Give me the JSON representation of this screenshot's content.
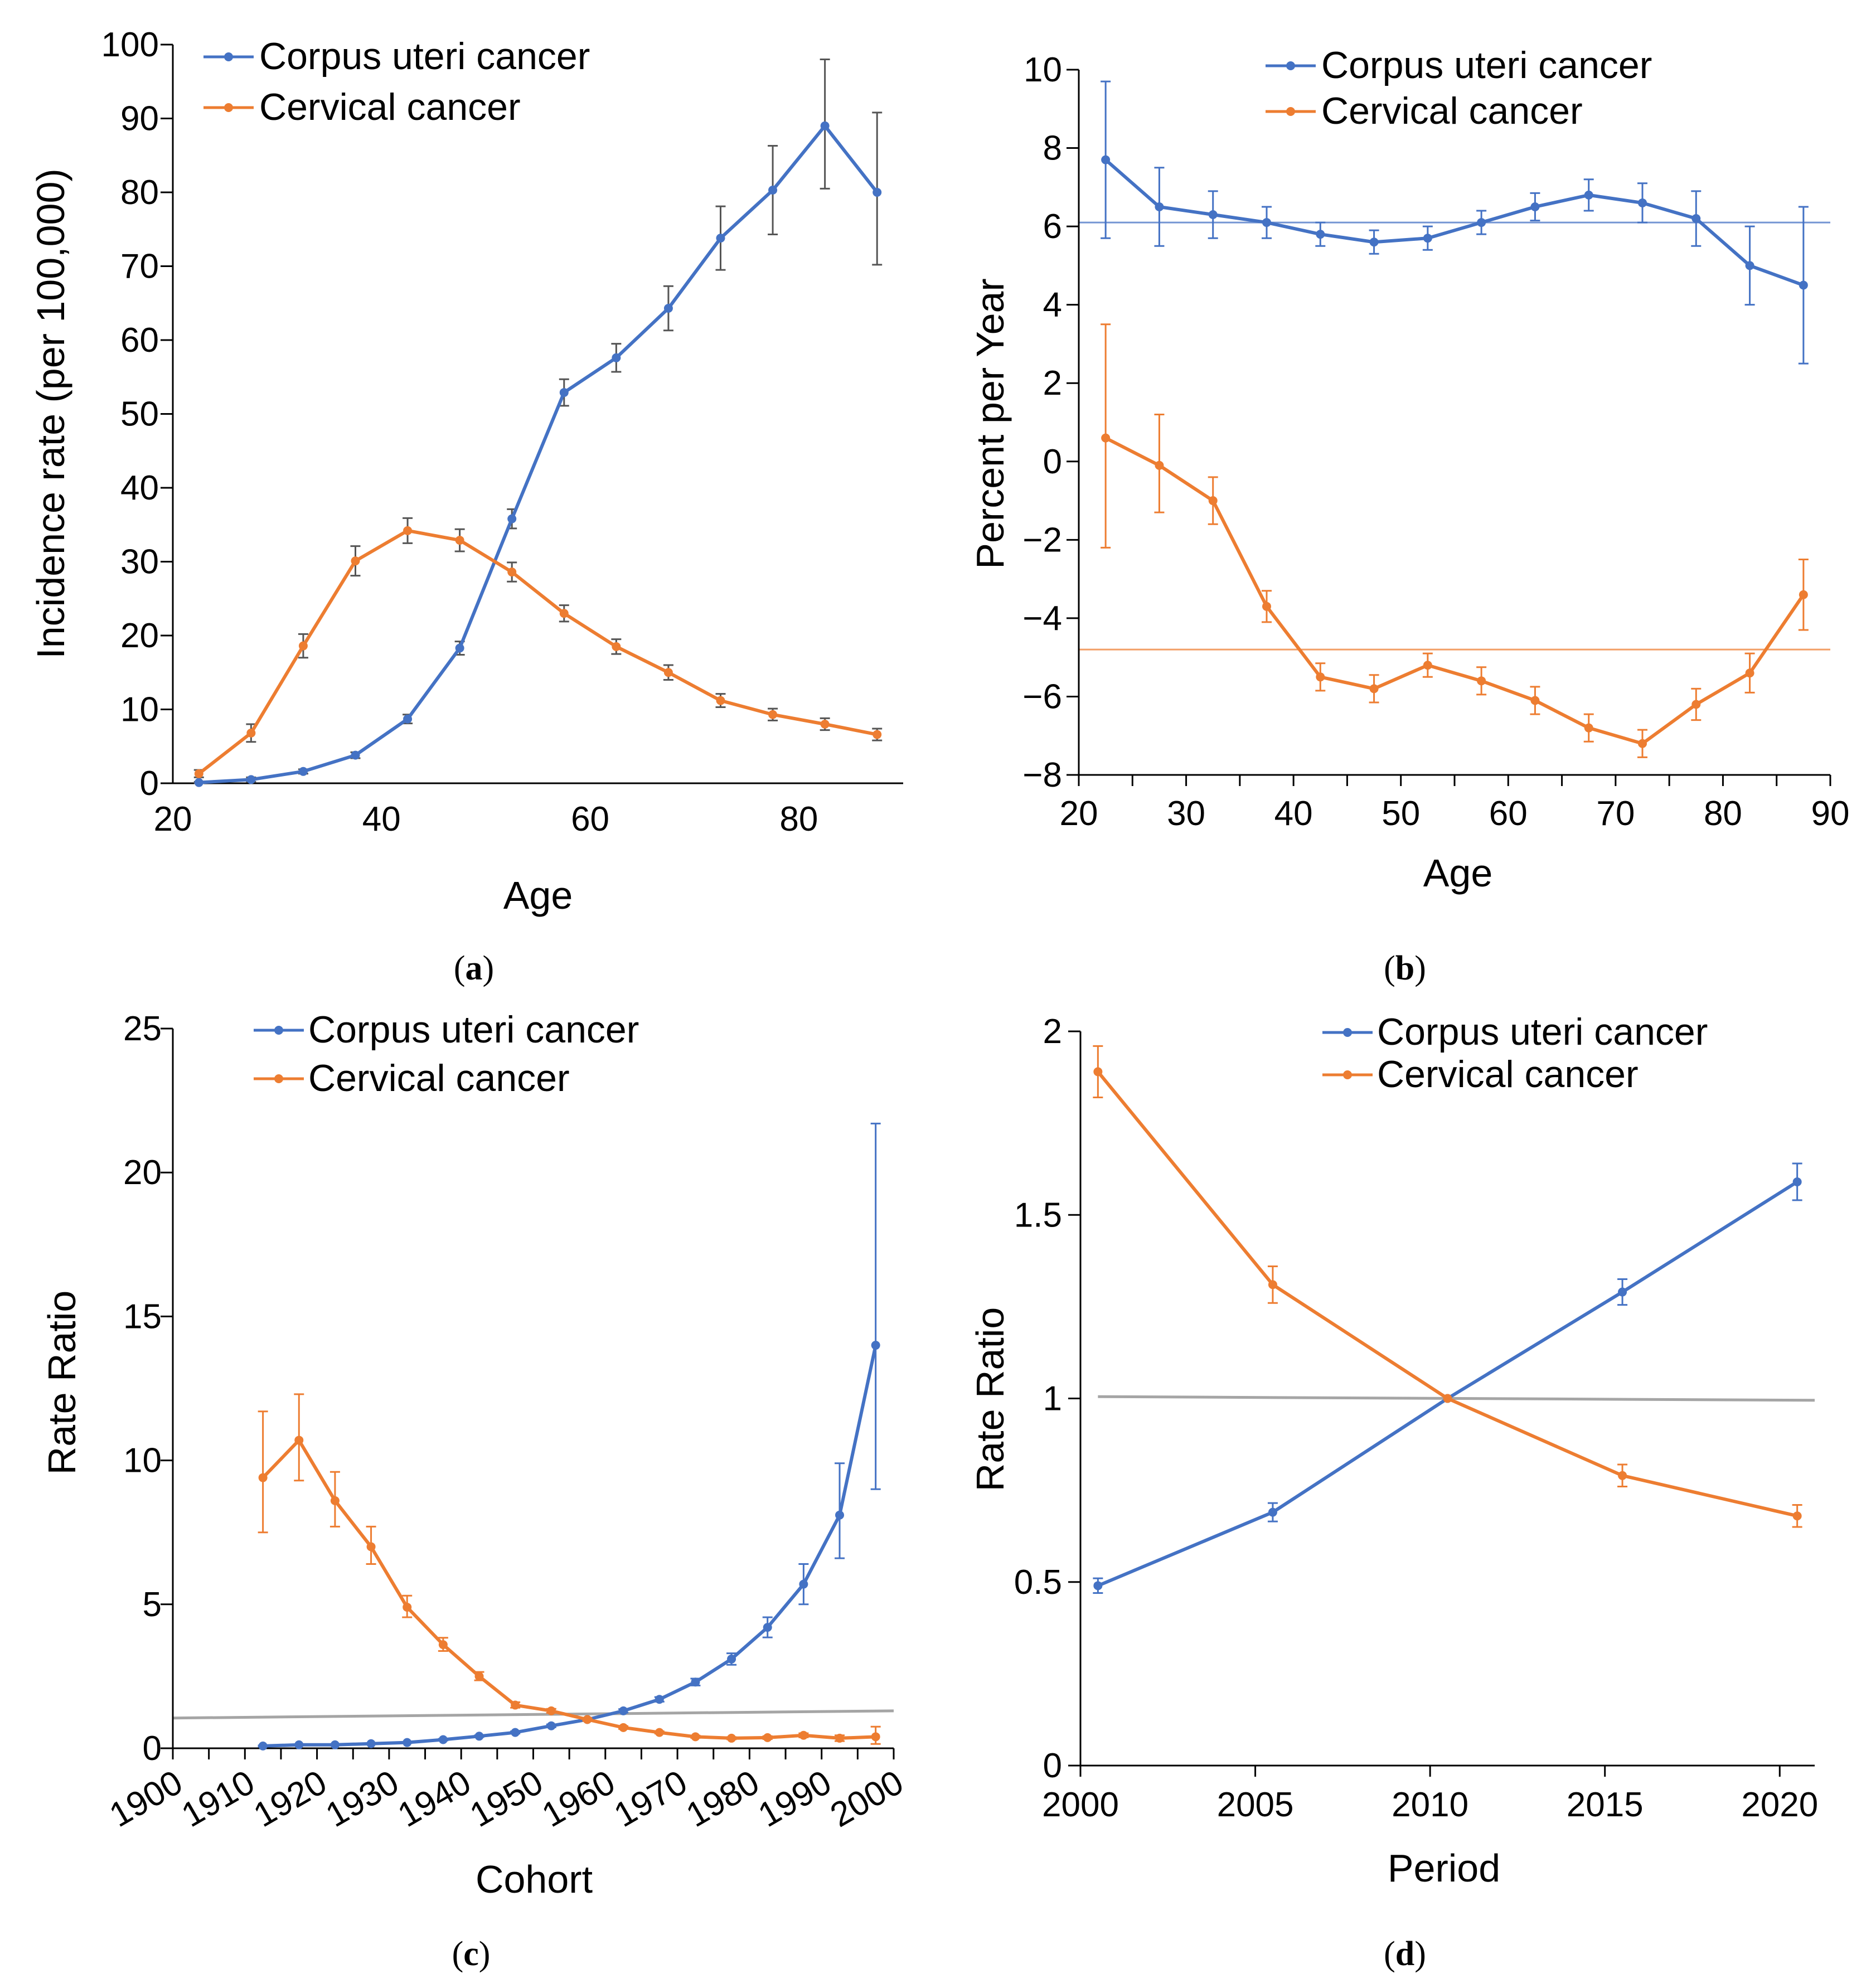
{
  "colors": {
    "corpus": "#4472C4",
    "cervical": "#ED7D31",
    "reference": "#A5A5A5",
    "errorbar_a": "#555555"
  },
  "chart_data": [
    {
      "type": "line",
      "panel_label": "a",
      "xlabel": "Age",
      "ylabel": "Incidence rate (per 100,000)",
      "xlim": [
        20,
        90
      ],
      "ylim": [
        0,
        100
      ],
      "xticks": [
        "20",
        "40",
        "60",
        "80"
      ],
      "yticks": [
        "0",
        "10",
        "20",
        "30",
        "40",
        "50",
        "60",
        "70",
        "80",
        "90",
        "100"
      ],
      "legend": "top-left",
      "error_bar_color": "#555555",
      "x": [
        22.5,
        27.5,
        32.5,
        37.5,
        42.5,
        47.5,
        52.5,
        57.5,
        62.5,
        67.5,
        72.5,
        77.5,
        82.5,
        87.5
      ],
      "series": [
        {
          "name": "Corpus uteri cancer",
          "color": "#4472C4",
          "values": [
            0.1,
            0.5,
            1.6,
            3.8,
            8.7,
            18.3,
            35.8,
            52.9,
            57.6,
            64.3,
            73.8,
            80.3,
            89.0,
            80.0
          ],
          "err_low": [
            0.1,
            0.3,
            0.3,
            0.4,
            0.6,
            0.9,
            1.3,
            1.8,
            1.9,
            3.0,
            4.3,
            6.0,
            8.5,
            9.8
          ],
          "err_high": [
            0.1,
            0.3,
            0.3,
            0.4,
            0.6,
            0.9,
            1.3,
            1.8,
            1.9,
            3.0,
            4.3,
            6.0,
            9.0,
            10.8
          ]
        },
        {
          "name": "Cervical cancer",
          "color": "#ED7D31",
          "values": [
            1.3,
            6.8,
            18.6,
            30.1,
            34.2,
            32.9,
            28.6,
            23.0,
            18.5,
            15.0,
            11.2,
            9.3,
            8.0,
            6.6
          ],
          "err_low": [
            0.5,
            1.2,
            1.6,
            2.0,
            1.7,
            1.5,
            1.3,
            1.1,
            1.0,
            1.0,
            0.9,
            0.8,
            0.8,
            0.8
          ],
          "err_high": [
            0.5,
            1.2,
            1.6,
            2.0,
            1.7,
            1.5,
            1.3,
            1.1,
            1.0,
            1.0,
            0.9,
            0.8,
            0.8,
            0.8
          ]
        }
      ]
    },
    {
      "type": "line",
      "panel_label": "b",
      "xlabel": "Age",
      "ylabel": "Percent per Year",
      "xlim": [
        20,
        90
      ],
      "ylim": [
        -8,
        10
      ],
      "xticks": [
        "20",
        "30",
        "40",
        "50",
        "60",
        "70",
        "80",
        "90"
      ],
      "yticks": [
        "−8",
        "−6",
        "−4",
        "−2",
        "0",
        "2",
        "4",
        "6",
        "8",
        "10"
      ],
      "legend": "top-center",
      "x": [
        22.5,
        27.5,
        32.5,
        37.5,
        42.5,
        47.5,
        52.5,
        57.5,
        62.5,
        67.5,
        72.5,
        77.5,
        82.5,
        87.5
      ],
      "reference_lines": [
        {
          "value": 6.1,
          "color": "#4472C4"
        },
        {
          "value": -4.8,
          "color": "#ED7D31"
        }
      ],
      "series": [
        {
          "name": "Corpus uteri cancer",
          "color": "#4472C4",
          "values": [
            7.7,
            6.5,
            6.3,
            6.1,
            5.8,
            5.6,
            5.7,
            6.1,
            6.5,
            6.8,
            6.6,
            6.2,
            5.0,
            4.5
          ],
          "err_low": [
            2.0,
            1.0,
            0.6,
            0.4,
            0.3,
            0.3,
            0.3,
            0.3,
            0.35,
            0.4,
            0.5,
            0.7,
            1.0,
            2.0
          ],
          "err_high": [
            2.0,
            1.0,
            0.6,
            0.4,
            0.3,
            0.3,
            0.3,
            0.3,
            0.35,
            0.4,
            0.5,
            0.7,
            1.0,
            2.0
          ]
        },
        {
          "name": "Cervical cancer",
          "color": "#ED7D31",
          "values": [
            0.6,
            -0.1,
            -1.0,
            -3.7,
            -5.5,
            -5.8,
            -5.2,
            -5.6,
            -6.1,
            -6.8,
            -7.2,
            -6.2,
            -5.4,
            -3.4
          ],
          "err_low": [
            2.8,
            1.2,
            0.6,
            0.4,
            0.35,
            0.35,
            0.3,
            0.35,
            0.35,
            0.35,
            0.35,
            0.4,
            0.5,
            0.9
          ],
          "err_high": [
            2.9,
            1.3,
            0.6,
            0.4,
            0.35,
            0.35,
            0.3,
            0.35,
            0.35,
            0.35,
            0.35,
            0.4,
            0.5,
            0.9
          ]
        }
      ]
    },
    {
      "type": "line",
      "panel_label": "c",
      "xlabel": "Cohort",
      "ylabel": "Rate Ratio",
      "xlim": [
        1900,
        2000
      ],
      "ylim": [
        0,
        25
      ],
      "xticks": [
        "1900",
        "1910",
        "1920",
        "1930",
        "1940",
        "1950",
        "1960",
        "1970",
        "1980",
        "1990",
        "2000"
      ],
      "yticks": [
        "0",
        "5",
        "10",
        "15",
        "20",
        "25"
      ],
      "legend": "top-center",
      "x": [
        1912.5,
        1917.5,
        1922.5,
        1927.5,
        1932.5,
        1937.5,
        1942.5,
        1947.5,
        1952.5,
        1957.5,
        1962.5,
        1967.5,
        1972.5,
        1977.5,
        1982.5,
        1987.5,
        1992.5,
        1997.5
      ],
      "reference_line": {
        "color": "#A5A5A5",
        "from": [
          1900,
          1.05
        ],
        "to": [
          2000,
          1.3
        ]
      },
      "series": [
        {
          "name": "Corpus uteri cancer",
          "color": "#4472C4",
          "values": [
            0.08,
            0.12,
            0.12,
            0.16,
            0.2,
            0.3,
            0.42,
            0.55,
            0.78,
            1.0,
            1.3,
            1.7,
            2.3,
            3.1,
            4.2,
            5.7,
            8.1,
            14.0
          ],
          "err_low": [
            0.02,
            0.02,
            0.02,
            0.02,
            0.02,
            0.03,
            0.03,
            0.04,
            0.05,
            0.05,
            0.06,
            0.08,
            0.12,
            0.2,
            0.35,
            0.7,
            1.5,
            5.0
          ],
          "err_high": [
            0.02,
            0.02,
            0.02,
            0.02,
            0.02,
            0.03,
            0.03,
            0.04,
            0.05,
            0.05,
            0.06,
            0.08,
            0.12,
            0.2,
            0.35,
            0.7,
            1.8,
            7.7
          ]
        },
        {
          "name": "Cervical cancer",
          "color": "#ED7D31",
          "values": [
            9.4,
            10.7,
            8.6,
            7.0,
            4.9,
            3.6,
            2.5,
            1.5,
            1.3,
            1.0,
            0.72,
            0.55,
            0.4,
            0.35,
            0.37,
            0.45,
            0.35,
            0.4
          ],
          "err_low": [
            1.9,
            1.4,
            0.9,
            0.6,
            0.35,
            0.22,
            0.14,
            0.09,
            0.07,
            0.05,
            0.05,
            0.04,
            0.04,
            0.04,
            0.05,
            0.07,
            0.1,
            0.25
          ],
          "err_high": [
            2.3,
            1.6,
            1.0,
            0.7,
            0.4,
            0.24,
            0.15,
            0.1,
            0.07,
            0.05,
            0.05,
            0.04,
            0.04,
            0.04,
            0.05,
            0.07,
            0.1,
            0.35
          ]
        }
      ]
    },
    {
      "type": "line",
      "panel_label": "d",
      "xlabel": "Period",
      "ylabel": "Rate Ratio",
      "xlim": [
        2000,
        2021
      ],
      "ylim": [
        0,
        2
      ],
      "xticks": [
        "2000",
        "2005",
        "2010",
        "2015",
        "2020"
      ],
      "yticks": [
        "0",
        "0.5",
        "1",
        "1.5",
        "2"
      ],
      "legend": "top-center",
      "x": [
        2000.5,
        2005.5,
        2010.5,
        2015.5,
        2020.5
      ],
      "reference_line": {
        "color": "#A5A5A5",
        "from": [
          2000.5,
          1.005
        ],
        "to": [
          2021,
          0.995
        ]
      },
      "series": [
        {
          "name": "Corpus uteri cancer",
          "color": "#4472C4",
          "values": [
            0.49,
            0.69,
            1.0,
            1.29,
            1.59
          ],
          "err_low": [
            0.02,
            0.025,
            0.0,
            0.035,
            0.05
          ],
          "err_high": [
            0.02,
            0.025,
            0.0,
            0.035,
            0.05
          ]
        },
        {
          "name": "Cervical cancer",
          "color": "#ED7D31",
          "values": [
            1.89,
            1.31,
            1.0,
            0.79,
            0.68
          ],
          "err_low": [
            0.07,
            0.05,
            0.0,
            0.03,
            0.03
          ],
          "err_high": [
            0.07,
            0.05,
            0.0,
            0.03,
            0.03
          ]
        }
      ]
    }
  ]
}
